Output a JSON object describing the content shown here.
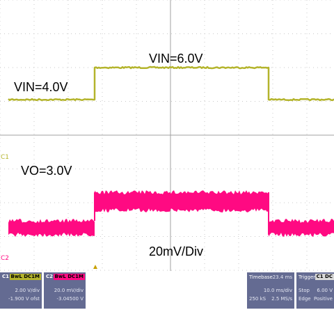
{
  "traces": {
    "ch1": {
      "color": "#b4b42c",
      "levels": {
        "low": "VIN=4.0V",
        "high": "VIN=6.0V"
      }
    },
    "ch2": {
      "color": "#ff0a82"
    }
  },
  "annotations": {
    "vin_low": "VIN=4.0V",
    "vin_high": "VIN=6.0V",
    "vo": "VO=3.0V",
    "scale": "20mV/Div"
  },
  "markers": {
    "c1": "C1",
    "c2": "C2"
  },
  "panels": {
    "c1": {
      "label": "C1",
      "coupling": "BwL DC1M",
      "vdiv": "2.00 V/div",
      "offset": "-1.900 V ofst",
      "header_color": "#b4b42c"
    },
    "c2": {
      "label": "C2",
      "coupling": "BwL DC1M",
      "vdiv": "20.0 mV/div",
      "offset": "-3.04500 V",
      "header_color": "#ff0a82"
    },
    "timebase": {
      "label": "Timebase",
      "delay": "-23.4 ms",
      "tdiv": "10.0 ms/div",
      "samples": "250 kS",
      "rate": "2.5 MS/s"
    },
    "trigger": {
      "label": "Trigger",
      "source": "C1 DC",
      "mode": "Stop",
      "level": "6.00 V",
      "type": "Edge",
      "slope": "Positive"
    }
  },
  "colors": {
    "grid": "#c8c8c8",
    "panel_bg": "#646b92",
    "trigger_marker": "#c8a000"
  }
}
